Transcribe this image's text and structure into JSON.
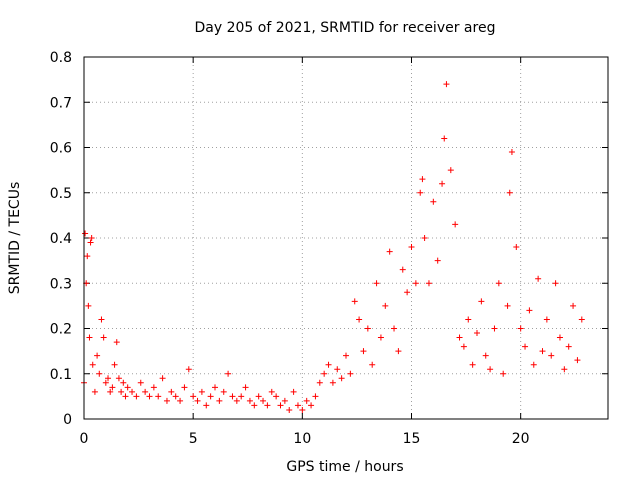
{
  "chart_data": {
    "type": "scatter",
    "title": "Day 205 of 2021, SRMTID for receiver areg",
    "xlabel": "GPS time / hours",
    "ylabel": "SRMTID / TECUs",
    "xlim": [
      0,
      24
    ],
    "ylim": [
      0,
      0.8
    ],
    "xticks": [
      0,
      5,
      10,
      15,
      20
    ],
    "xtick_labels": [
      "0",
      "5",
      "10",
      "15",
      "20"
    ],
    "yticks": [
      0,
      0.1,
      0.2,
      0.3,
      0.4,
      0.5,
      0.6,
      0.7,
      0.8
    ],
    "ytick_labels": [
      "0",
      "0.1",
      "0.2",
      "0.3",
      "0.4",
      "0.5",
      "0.6",
      "0.7",
      "0.8"
    ],
    "grid": true,
    "marker": "+",
    "color": "#ff0000",
    "series": [
      {
        "name": "SRMTID",
        "x": [
          0.0,
          0.05,
          0.1,
          0.15,
          0.2,
          0.25,
          0.3,
          0.35,
          0.4,
          0.5,
          0.6,
          0.7,
          0.8,
          0.9,
          1.0,
          1.1,
          1.2,
          1.3,
          1.4,
          1.5,
          1.6,
          1.7,
          1.8,
          1.9,
          2.0,
          2.2,
          2.4,
          2.6,
          2.8,
          3.0,
          3.2,
          3.4,
          3.6,
          3.8,
          4.0,
          4.2,
          4.4,
          4.6,
          4.8,
          5.0,
          5.2,
          5.4,
          5.6,
          5.8,
          6.0,
          6.2,
          6.4,
          6.6,
          6.8,
          7.0,
          7.2,
          7.4,
          7.6,
          7.8,
          8.0,
          8.2,
          8.4,
          8.6,
          8.8,
          9.0,
          9.2,
          9.4,
          9.6,
          9.8,
          10.0,
          10.2,
          10.4,
          10.6,
          10.8,
          11.0,
          11.2,
          11.4,
          11.6,
          11.8,
          12.0,
          12.2,
          12.4,
          12.6,
          12.8,
          13.0,
          13.2,
          13.4,
          13.6,
          13.8,
          14.0,
          14.2,
          14.4,
          14.6,
          14.8,
          15.0,
          15.2,
          15.4,
          15.5,
          15.6,
          15.8,
          16.0,
          16.2,
          16.4,
          16.5,
          16.6,
          16.8,
          17.0,
          17.2,
          17.4,
          17.6,
          17.8,
          18.0,
          18.2,
          18.4,
          18.6,
          18.8,
          19.0,
          19.2,
          19.4,
          19.5,
          19.6,
          19.8,
          20.0,
          20.2,
          20.4,
          20.6,
          20.8,
          21.0,
          21.2,
          21.4,
          21.6,
          21.8,
          22.0,
          22.2,
          22.4,
          22.6,
          22.8
        ],
        "y": [
          0.08,
          0.41,
          0.3,
          0.36,
          0.25,
          0.18,
          0.39,
          0.4,
          0.12,
          0.06,
          0.14,
          0.1,
          0.22,
          0.18,
          0.08,
          0.09,
          0.06,
          0.07,
          0.12,
          0.17,
          0.09,
          0.06,
          0.08,
          0.05,
          0.07,
          0.06,
          0.05,
          0.08,
          0.06,
          0.05,
          0.07,
          0.05,
          0.09,
          0.04,
          0.06,
          0.05,
          0.04,
          0.07,
          0.11,
          0.05,
          0.04,
          0.06,
          0.03,
          0.05,
          0.07,
          0.04,
          0.06,
          0.1,
          0.05,
          0.04,
          0.05,
          0.07,
          0.04,
          0.03,
          0.05,
          0.04,
          0.03,
          0.06,
          0.05,
          0.03,
          0.04,
          0.02,
          0.06,
          0.03,
          0.02,
          0.04,
          0.03,
          0.05,
          0.08,
          0.1,
          0.12,
          0.08,
          0.11,
          0.09,
          0.14,
          0.1,
          0.26,
          0.22,
          0.15,
          0.2,
          0.12,
          0.3,
          0.18,
          0.25,
          0.37,
          0.2,
          0.15,
          0.33,
          0.28,
          0.38,
          0.3,
          0.5,
          0.53,
          0.4,
          0.3,
          0.48,
          0.35,
          0.52,
          0.62,
          0.74,
          0.55,
          0.43,
          0.18,
          0.16,
          0.22,
          0.12,
          0.19,
          0.26,
          0.14,
          0.11,
          0.2,
          0.3,
          0.1,
          0.25,
          0.5,
          0.59,
          0.38,
          0.2,
          0.16,
          0.24,
          0.12,
          0.31,
          0.15,
          0.22,
          0.14,
          0.3,
          0.18,
          0.11,
          0.16,
          0.25,
          0.13,
          0.22
        ]
      }
    ]
  }
}
